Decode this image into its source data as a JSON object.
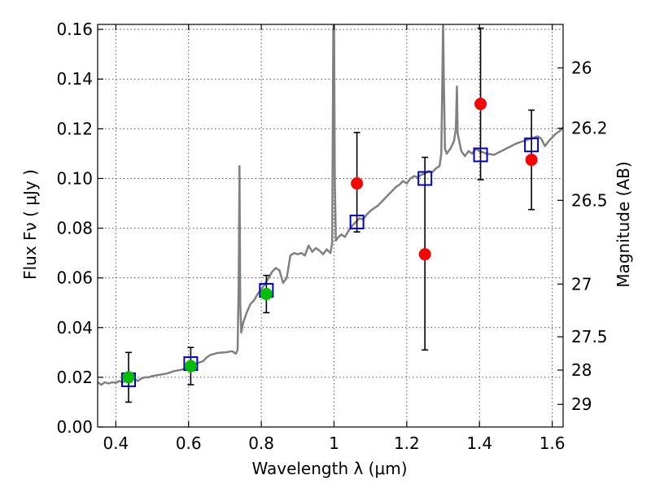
{
  "chart_data": {
    "type": "scatter",
    "title": "",
    "xlabel": "Wavelength  λ (μm)",
    "ylabel": "Flux  Fν  ( μJy )",
    "ylabel_right": "Magnitude (AB)",
    "xlim": [
      0.35,
      1.63
    ],
    "ylim": [
      0.0,
      0.162
    ],
    "grid": true,
    "x_ticks": [
      0.4,
      0.6,
      0.8,
      1.0,
      1.2,
      1.4,
      1.6
    ],
    "x_tick_labels": [
      "0.4",
      "0.6",
      "0.8",
      "1",
      "1.2",
      "1.4",
      "1.6"
    ],
    "y_ticks": [
      0.0,
      0.02,
      0.04,
      0.06,
      0.08,
      0.1,
      0.12,
      0.14,
      0.16
    ],
    "y_tick_labels": [
      "0.00",
      "0.02",
      "0.04",
      "0.06",
      "0.08",
      "0.10",
      "0.12",
      "0.14",
      "0.16"
    ],
    "mag_ticks": [
      {
        "label": "26",
        "flux": 0.1445
      },
      {
        "label": "26.2",
        "flux": 0.1202
      },
      {
        "label": "26.5",
        "flux": 0.0912
      },
      {
        "label": "27",
        "flux": 0.0575
      },
      {
        "label": "27.5",
        "flux": 0.0363
      },
      {
        "label": "28",
        "flux": 0.0229
      },
      {
        "label": "29",
        "flux": 0.0091
      }
    ],
    "colors": {
      "spectrum": "#808080",
      "green": "#00bf00",
      "red": "#ff0000",
      "blue_squares": "#0000cc",
      "errorbars": "#000000"
    },
    "series": [
      {
        "marker": "square",
        "color": "#0000cc",
        "points": [
          {
            "x": 0.435,
            "y": 0.019
          },
          {
            "x": 0.606,
            "y": 0.0255
          },
          {
            "x": 0.814,
            "y": 0.055
          },
          {
            "x": 1.063,
            "y": 0.0825
          },
          {
            "x": 1.25,
            "y": 0.1
          },
          {
            "x": 1.403,
            "y": 0.1095
          },
          {
            "x": 1.543,
            "y": 0.1135
          }
        ]
      },
      {
        "marker": "circle",
        "color": "#00bf00",
        "points": [
          {
            "x": 0.435,
            "y": 0.02,
            "err_lo": 0.01,
            "err_hi": 0.03
          },
          {
            "x": 0.606,
            "y": 0.0245,
            "err_lo": 0.017,
            "err_hi": 0.032
          },
          {
            "x": 0.814,
            "y": 0.0535,
            "err_lo": 0.046,
            "err_hi": 0.061
          }
        ]
      },
      {
        "marker": "circle",
        "color": "#ff0000",
        "points": [
          {
            "x": 1.063,
            "y": 0.098,
            "err_lo": 0.0785,
            "err_hi": 0.1185
          },
          {
            "x": 1.25,
            "y": 0.0695,
            "err_lo": 0.031,
            "err_hi": 0.1085
          },
          {
            "x": 1.403,
            "y": 0.13,
            "err_lo": 0.0995,
            "err_hi": 0.1605
          },
          {
            "x": 1.543,
            "y": 0.1075,
            "err_lo": 0.0875,
            "err_hi": 0.1275
          }
        ]
      }
    ],
    "spectrum": {
      "color": "#808080",
      "points": [
        [
          0.35,
          0.018
        ],
        [
          0.36,
          0.017
        ],
        [
          0.37,
          0.018
        ],
        [
          0.38,
          0.0175
        ],
        [
          0.39,
          0.018
        ],
        [
          0.4,
          0.0178
        ],
        [
          0.41,
          0.0185
        ],
        [
          0.42,
          0.018
        ],
        [
          0.43,
          0.019
        ],
        [
          0.44,
          0.0185
        ],
        [
          0.45,
          0.0195
        ],
        [
          0.46,
          0.0185
        ],
        [
          0.47,
          0.0195
        ],
        [
          0.48,
          0.02
        ],
        [
          0.49,
          0.02
        ],
        [
          0.5,
          0.0205
        ],
        [
          0.52,
          0.021
        ],
        [
          0.54,
          0.0215
        ],
        [
          0.56,
          0.0225
        ],
        [
          0.58,
          0.023
        ],
        [
          0.6,
          0.024
        ],
        [
          0.62,
          0.0255
        ],
        [
          0.64,
          0.0265
        ],
        [
          0.65,
          0.028
        ],
        [
          0.66,
          0.029
        ],
        [
          0.68,
          0.0298
        ],
        [
          0.7,
          0.03
        ],
        [
          0.72,
          0.0305
        ],
        [
          0.73,
          0.0295
        ],
        [
          0.735,
          0.031
        ],
        [
          0.738,
          0.06
        ],
        [
          0.74,
          0.105
        ],
        [
          0.742,
          0.05
        ],
        [
          0.745,
          0.038
        ],
        [
          0.75,
          0.042
        ],
        [
          0.76,
          0.046
        ],
        [
          0.77,
          0.0495
        ],
        [
          0.78,
          0.051
        ],
        [
          0.79,
          0.0535
        ],
        [
          0.8,
          0.0555
        ],
        [
          0.81,
          0.0575
        ],
        [
          0.82,
          0.06
        ],
        [
          0.83,
          0.0625
        ],
        [
          0.84,
          0.064
        ],
        [
          0.85,
          0.063
        ],
        [
          0.86,
          0.058
        ],
        [
          0.87,
          0.06
        ],
        [
          0.88,
          0.069
        ],
        [
          0.89,
          0.07
        ],
        [
          0.9,
          0.0695
        ],
        [
          0.91,
          0.07
        ],
        [
          0.92,
          0.069
        ],
        [
          0.93,
          0.073
        ],
        [
          0.94,
          0.0705
        ],
        [
          0.95,
          0.072
        ],
        [
          0.96,
          0.071
        ],
        [
          0.97,
          0.0695
        ],
        [
          0.98,
          0.0715
        ],
        [
          0.99,
          0.07
        ],
        [
          0.995,
          0.074
        ],
        [
          0.998,
          0.16
        ],
        [
          1.0,
          0.164
        ],
        [
          1.002,
          0.1
        ],
        [
          1.005,
          0.075
        ],
        [
          1.01,
          0.076
        ],
        [
          1.02,
          0.0775
        ],
        [
          1.03,
          0.0765
        ],
        [
          1.04,
          0.079
        ],
        [
          1.05,
          0.081
        ],
        [
          1.06,
          0.0825
        ],
        [
          1.07,
          0.084
        ],
        [
          1.08,
          0.0835
        ],
        [
          1.09,
          0.0855
        ],
        [
          1.1,
          0.087
        ],
        [
          1.11,
          0.088
        ],
        [
          1.12,
          0.089
        ],
        [
          1.13,
          0.0905
        ],
        [
          1.14,
          0.092
        ],
        [
          1.15,
          0.0935
        ],
        [
          1.16,
          0.095
        ],
        [
          1.17,
          0.0965
        ],
        [
          1.18,
          0.0975
        ],
        [
          1.19,
          0.099
        ],
        [
          1.2,
          0.098
        ],
        [
          1.21,
          0.1
        ],
        [
          1.22,
          0.101
        ],
        [
          1.23,
          0.1005
        ],
        [
          1.24,
          0.1015
        ],
        [
          1.25,
          0.102
        ],
        [
          1.26,
          0.103
        ],
        [
          1.27,
          0.1025
        ],
        [
          1.28,
          0.104
        ],
        [
          1.29,
          0.105
        ],
        [
          1.295,
          0.11
        ],
        [
          1.298,
          0.14
        ],
        [
          1.3,
          0.164
        ],
        [
          1.302,
          0.14
        ],
        [
          1.305,
          0.112
        ],
        [
          1.31,
          0.11
        ],
        [
          1.32,
          0.112
        ],
        [
          1.33,
          0.115
        ],
        [
          1.335,
          0.12
        ],
        [
          1.338,
          0.137
        ],
        [
          1.34,
          0.118
        ],
        [
          1.35,
          0.111
        ],
        [
          1.36,
          0.109
        ],
        [
          1.37,
          0.111
        ],
        [
          1.38,
          0.11
        ],
        [
          1.39,
          0.112
        ],
        [
          1.4,
          0.111
        ],
        [
          1.42,
          0.11
        ],
        [
          1.44,
          0.1095
        ],
        [
          1.46,
          0.111
        ],
        [
          1.48,
          0.1125
        ],
        [
          1.5,
          0.114
        ],
        [
          1.52,
          0.115
        ],
        [
          1.54,
          0.116
        ],
        [
          1.56,
          0.117
        ],
        [
          1.57,
          0.116
        ],
        [
          1.58,
          0.113
        ],
        [
          1.59,
          0.115
        ],
        [
          1.6,
          0.1165
        ],
        [
          1.61,
          0.118
        ],
        [
          1.62,
          0.119
        ],
        [
          1.63,
          0.1205
        ]
      ]
    }
  }
}
